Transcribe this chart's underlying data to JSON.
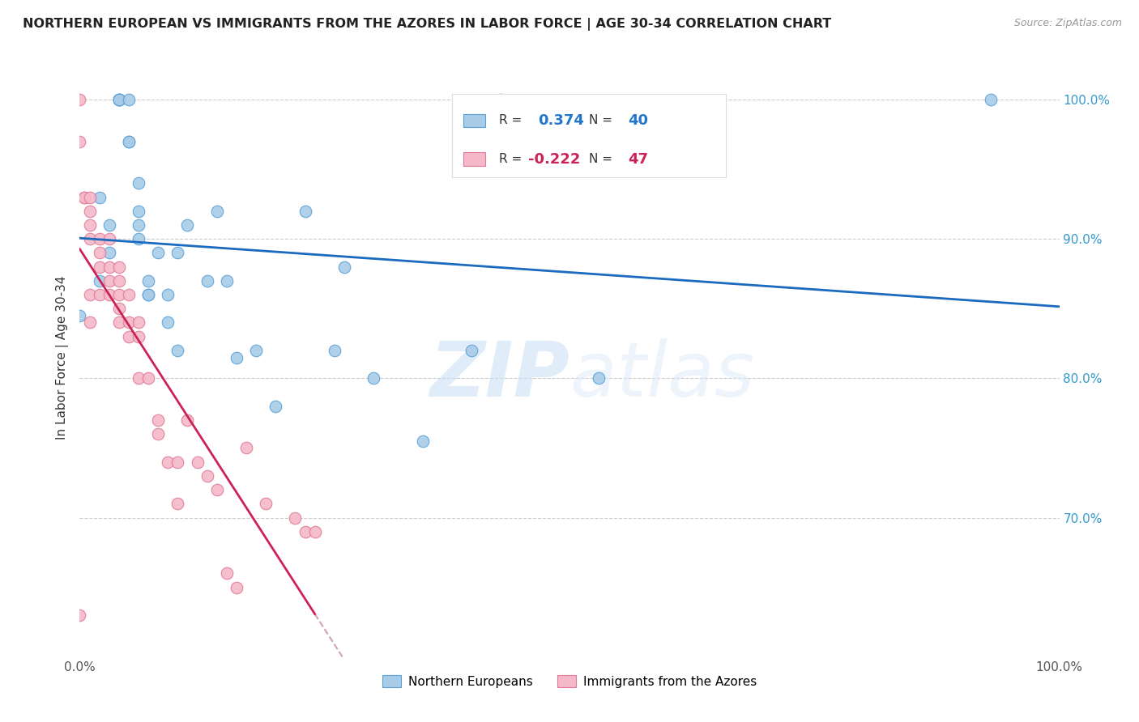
{
  "title": "NORTHERN EUROPEAN VS IMMIGRANTS FROM THE AZORES IN LABOR FORCE | AGE 30-34 CORRELATION CHART",
  "source": "Source: ZipAtlas.com",
  "ylabel": "In Labor Force | Age 30-34",
  "xlim": [
    0.0,
    1.0
  ],
  "ylim": [
    0.6,
    1.03
  ],
  "yticks": [
    0.7,
    0.8,
    0.9,
    1.0
  ],
  "ytick_labels": [
    "70.0%",
    "80.0%",
    "90.0%",
    "100.0%"
  ],
  "xticks": [
    0.0,
    0.1,
    0.2,
    0.3,
    0.4,
    0.5,
    0.6,
    0.7,
    0.8,
    0.9,
    1.0
  ],
  "xtick_labels": [
    "0.0%",
    "",
    "",
    "",
    "",
    "",
    "",
    "",
    "",
    "",
    "100.0%"
  ],
  "blue_color": "#a8cce8",
  "pink_color": "#f5b8c8",
  "blue_edge": "#5a9fd4",
  "pink_edge": "#e07898",
  "trend_blue": "#1a6bbf",
  "trend_pink": "#cc2255",
  "trend_pink_dash": "#d4a0b4",
  "blue_scatter_x": [
    0.0,
    0.02,
    0.02,
    0.03,
    0.03,
    0.04,
    0.04,
    0.04,
    0.04,
    0.05,
    0.05,
    0.05,
    0.06,
    0.06,
    0.06,
    0.06,
    0.07,
    0.07,
    0.07,
    0.08,
    0.09,
    0.09,
    0.1,
    0.1,
    0.11,
    0.13,
    0.14,
    0.15,
    0.16,
    0.18,
    0.2,
    0.23,
    0.26,
    0.27,
    0.3,
    0.35,
    0.4,
    0.43,
    0.53,
    0.93
  ],
  "blue_scatter_y": [
    0.845,
    0.93,
    0.87,
    0.89,
    0.91,
    1.0,
    1.0,
    1.0,
    1.0,
    0.97,
    0.97,
    1.0,
    0.94,
    0.92,
    0.91,
    0.9,
    0.87,
    0.86,
    0.86,
    0.89,
    0.86,
    0.84,
    0.82,
    0.89,
    0.91,
    0.87,
    0.92,
    0.87,
    0.815,
    0.82,
    0.78,
    0.92,
    0.82,
    0.88,
    0.8,
    0.755,
    0.82,
    1.0,
    0.8,
    1.0
  ],
  "pink_scatter_x": [
    0.0,
    0.0,
    0.0,
    0.005,
    0.005,
    0.01,
    0.01,
    0.01,
    0.01,
    0.01,
    0.01,
    0.02,
    0.02,
    0.02,
    0.02,
    0.03,
    0.03,
    0.03,
    0.03,
    0.04,
    0.04,
    0.04,
    0.04,
    0.04,
    0.05,
    0.05,
    0.05,
    0.06,
    0.06,
    0.06,
    0.07,
    0.08,
    0.08,
    0.09,
    0.1,
    0.1,
    0.11,
    0.12,
    0.13,
    0.14,
    0.15,
    0.16,
    0.17,
    0.19,
    0.22,
    0.23,
    0.24
  ],
  "pink_scatter_y": [
    1.0,
    0.97,
    0.63,
    0.93,
    0.93,
    0.93,
    0.92,
    0.91,
    0.9,
    0.86,
    0.84,
    0.9,
    0.89,
    0.88,
    0.86,
    0.9,
    0.88,
    0.87,
    0.86,
    0.88,
    0.87,
    0.86,
    0.85,
    0.84,
    0.86,
    0.84,
    0.83,
    0.84,
    0.83,
    0.8,
    0.8,
    0.77,
    0.76,
    0.74,
    0.74,
    0.71,
    0.77,
    0.74,
    0.73,
    0.72,
    0.66,
    0.65,
    0.75,
    0.71,
    0.7,
    0.69,
    0.69
  ],
  "watermark_zip": "ZIP",
  "watermark_atlas": "atlas",
  "legend_northern": "Northern Europeans",
  "legend_azores": "Immigrants from the Azores",
  "r_blue_str": "0.374",
  "n_blue_str": "40",
  "r_pink_str": "-0.222",
  "n_pink_str": "47"
}
